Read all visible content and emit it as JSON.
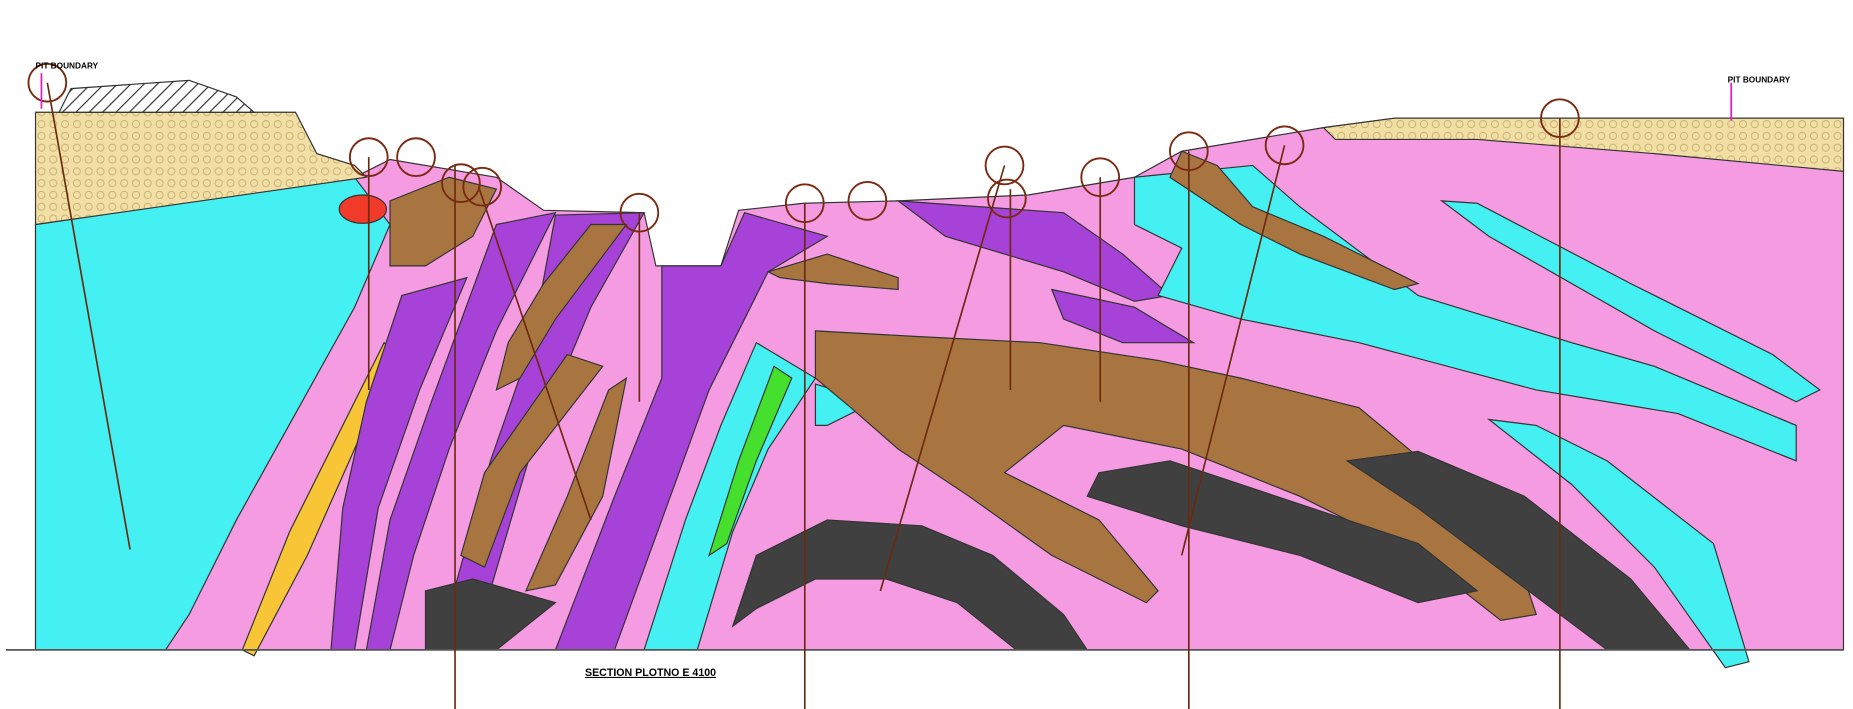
{
  "header": {
    "pit_boundary_left": "PIT BOUNDARY",
    "pit_boundary_right": "PIT BOUNDARY"
  },
  "footer": {
    "section_label": "SECTION PLOTNO E 4100"
  }
}
